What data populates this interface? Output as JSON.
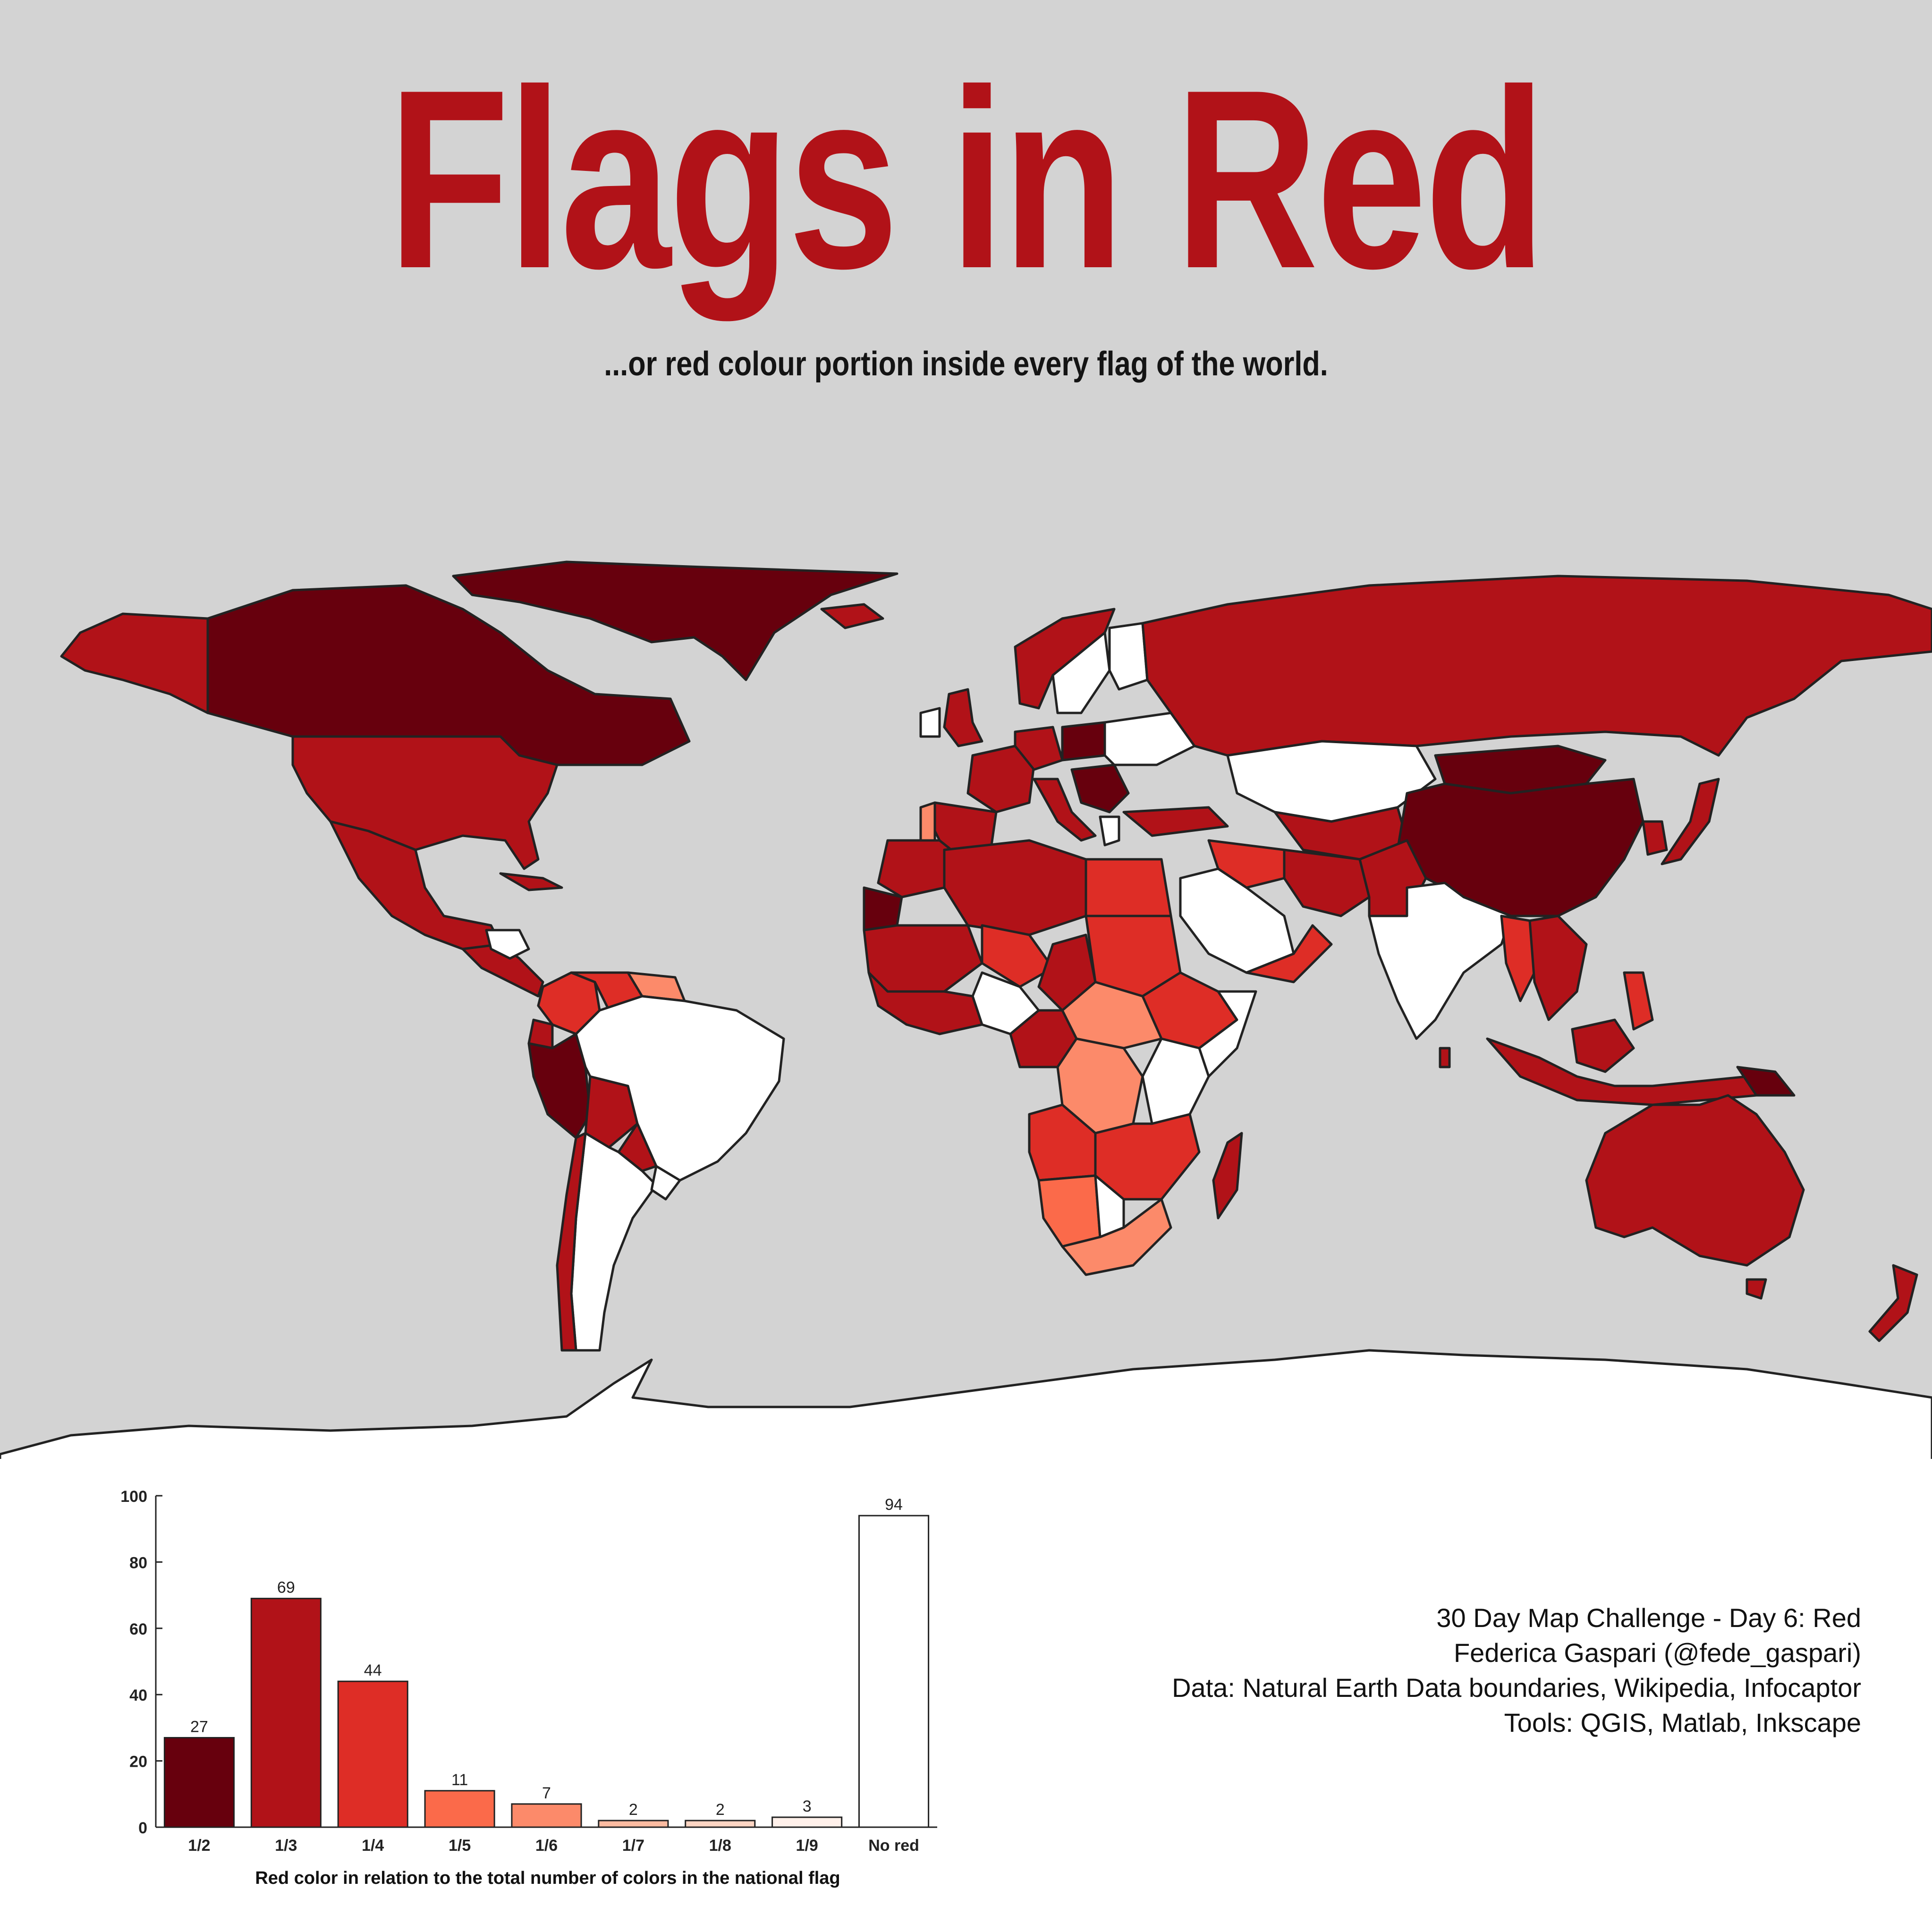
{
  "header": {
    "title": "Flags in Red",
    "subtitle": "...or red colour portion inside every flag of the world."
  },
  "map": {
    "ocean_color": "#d3d3d3",
    "border_color": "#222222",
    "classes": [
      {
        "share": "1/2",
        "color": "#67000d"
      },
      {
        "share": "1/3",
        "color": "#b11218"
      },
      {
        "share": "1/4",
        "color": "#de2d26"
      },
      {
        "share": "1/5",
        "color": "#fb6a4a"
      },
      {
        "share": "1/6",
        "color": "#fc8a6a"
      },
      {
        "share": "No red",
        "color": "#ffffff"
      }
    ]
  },
  "chart_data": {
    "type": "bar",
    "categories": [
      "1/2",
      "1/3",
      "1/4",
      "1/5",
      "1/6",
      "1/7",
      "1/8",
      "1/9",
      "No red"
    ],
    "values": [
      27,
      69,
      44,
      11,
      7,
      2,
      2,
      3,
      94
    ],
    "colors": [
      "#67000d",
      "#b11218",
      "#de2d26",
      "#fb6a4a",
      "#fc8a6a",
      "#fcbba1",
      "#fdd5c3",
      "#fff0ea",
      "#ffffff"
    ],
    "xlabel": "Red color in relation to the total number of colors in the national flag",
    "ylabel": "",
    "ylim": [
      0,
      100
    ],
    "yticks": [
      0,
      20,
      40,
      60,
      80,
      100
    ],
    "data_labels": true
  },
  "credits": {
    "line1": "30 Day Map Challenge - Day 6: Red",
    "line2": "Federica Gaspari (@fede_gaspari)",
    "line3": "Data: Natural Earth Data boundaries, Wikipedia, Infocaptor",
    "line4": "Tools: QGIS, Matlab, Inkscape"
  }
}
